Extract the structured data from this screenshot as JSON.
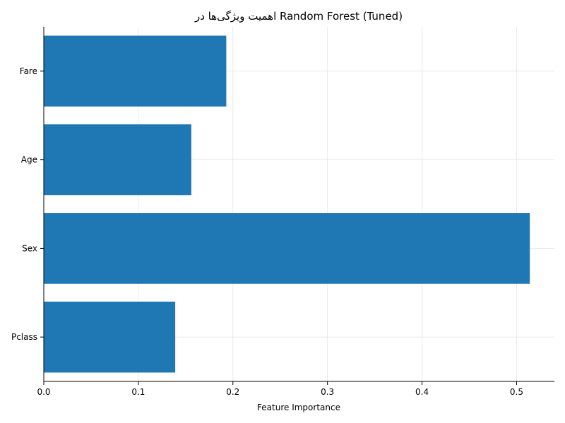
{
  "chart_data": {
    "type": "bar",
    "orientation": "horizontal",
    "title": "اهمیت ویژگی‌ها در Random Forest (Tuned)",
    "xlabel": "Feature Importance",
    "ylabel": "",
    "categories": [
      "Pclass",
      "Sex",
      "Age",
      "Fare"
    ],
    "values": [
      0.139,
      0.514,
      0.156,
      0.193
    ],
    "xlim": [
      0,
      0.54
    ],
    "xticks": [
      0.0,
      0.1,
      0.2,
      0.3,
      0.4,
      0.5
    ],
    "xtick_labels": [
      "0.0",
      "0.1",
      "0.2",
      "0.3",
      "0.4",
      "0.5"
    ],
    "grid": true,
    "bar_color": "#1f77b4"
  }
}
